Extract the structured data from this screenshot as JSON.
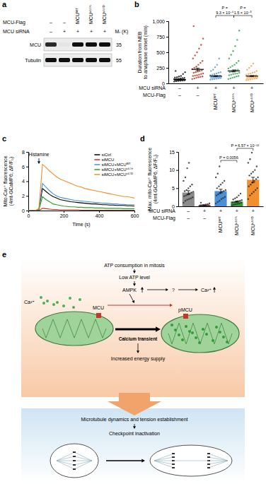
{
  "panel_labels": [
    "a",
    "b",
    "c",
    "d",
    "e"
  ],
  "panel_a": {
    "row_labels": [
      {
        "label": "MCU-Flag",
        "values": [
          "–",
          "–",
          "MCUᵂᵀ",
          "MCUˢ⁵⁷ᴬ",
          "MCUˢ⁵⁷ᴰ"
        ]
      },
      {
        "label": "MCU siRNA",
        "values": [
          "–",
          "+",
          "+",
          "+",
          "+"
        ]
      }
    ],
    "mr_label": "Mᵣ (K)",
    "blots": [
      {
        "label": "MCU",
        "mr": 35,
        "intensity": [
          0.9,
          0.1,
          1,
          1,
          1
        ]
      },
      {
        "label": "Tubulin",
        "mr": 55,
        "intensity": [
          1,
          1,
          1,
          1,
          1
        ]
      }
    ]
  },
  "chart_data": [
    {
      "type": "strip",
      "y_label": [
        "Duration from NEB",
        "to anaphase onset (min)"
      ],
      "x_label": "MCU-Flag",
      "categories": [
        "–",
        "–",
        "MCUᵂᵀ",
        "MCUˢ⁵⁷ᴬ",
        "MCUˢ⁵⁷ᴰ"
      ],
      "row_labels": [
        {
          "label": "MCU siRNA",
          "values": [
            "–",
            "+",
            "+",
            "+",
            "+"
          ]
        }
      ],
      "values": [
        62,
        225,
        118,
        200,
        118
      ],
      "errors": [
        4,
        20,
        8,
        16,
        8
      ],
      "points": [
        [
          30,
          35,
          40,
          42,
          45,
          48,
          50,
          50,
          52,
          55,
          55,
          58,
          60,
          60,
          62,
          65,
          68,
          70,
          72,
          75,
          80,
          85,
          90,
          95,
          100,
          110,
          120,
          150,
          180,
          200
        ],
        [
          70,
          80,
          90,
          100,
          105,
          110,
          120,
          125,
          130,
          140,
          150,
          160,
          170,
          180,
          190,
          200,
          210,
          230,
          250,
          270,
          300,
          330,
          360,
          400,
          450,
          500,
          560,
          620,
          720,
          920
        ],
        [
          60,
          65,
          70,
          75,
          80,
          85,
          90,
          90,
          95,
          100,
          100,
          105,
          110,
          110,
          115,
          120,
          125,
          130,
          140,
          150,
          160,
          170,
          180,
          200,
          220,
          260,
          300,
          400
        ],
        [
          70,
          80,
          90,
          100,
          110,
          120,
          130,
          140,
          150,
          155,
          160,
          170,
          180,
          190,
          200,
          210,
          220,
          240,
          260,
          280,
          300,
          330,
          360,
          400,
          460,
          520,
          600,
          700,
          850
        ],
        [
          55,
          60,
          65,
          70,
          75,
          80,
          85,
          90,
          95,
          100,
          100,
          105,
          110,
          115,
          120,
          125,
          130,
          140,
          150,
          160,
          170,
          180,
          200,
          220,
          250,
          280,
          320
        ]
      ],
      "colors": [
        "#1a1a1a",
        "#c0392b",
        "#5b9bd5",
        "#3aa655",
        "#f5a04a"
      ],
      "ylim": [
        0,
        1000
      ],
      "yticks": [
        0,
        250,
        500,
        750,
        {
          "value": 1000,
          "label": "1,000"
        }
      ],
      "annotations": [
        {
          "lines": [
            "P =",
            "9.3 × 10⁻⁶"
          ],
          "from": 2,
          "to": 3
        },
        {
          "lines": [
            "P =",
            "1.5 × 10⁻⁵"
          ],
          "from": 3,
          "to": 4
        }
      ]
    },
    {
      "type": "line",
      "x_label": "Time (s)",
      "y_label": [
        "Mito-Ca²⁺ fluorescence",
        "(4mt-GCaMP6, ΔF/F₀)"
      ],
      "x": [
        0,
        20,
        40,
        60,
        80,
        100,
        120,
        140,
        160,
        180,
        200,
        220,
        240,
        260,
        280,
        300,
        320,
        340,
        360,
        380,
        400,
        420,
        440,
        460,
        480,
        500,
        520,
        540,
        560,
        580,
        600
      ],
      "series": [
        {
          "name": "siCtrl",
          "color": "#000000",
          "values": [
            0,
            0,
            0,
            0.2,
            3.0,
            2.6,
            2.2,
            1.9,
            1.7,
            1.5,
            1.4,
            1.3,
            1.2,
            1.15,
            1.1,
            1.05,
            1.0,
            0.95,
            0.9,
            0.9,
            0.85,
            0.8,
            0.8,
            0.75,
            0.75,
            0.7,
            0.7,
            0.7,
            0.65,
            0.65,
            0.6
          ]
        },
        {
          "name": "siMCU",
          "color": "#d62728",
          "values": [
            0,
            0,
            0,
            0,
            0.3,
            0.25,
            0.2,
            0.15,
            0.15,
            0.1,
            0.1,
            0.1,
            0.1,
            0.1,
            0.1,
            0.05,
            0.05,
            0.05,
            0.05,
            0.05,
            0.05,
            0.05,
            0.05,
            0.05,
            0.05,
            0.05,
            0.05,
            0.05,
            0.05,
            0.05,
            0.05
          ]
        },
        {
          "name": "siMCU+MCUᵂᵀ",
          "color": "#4a90d9",
          "values": [
            0,
            0,
            0,
            0.2,
            3.7,
            3.2,
            2.7,
            2.3,
            2.0,
            1.8,
            1.7,
            1.6,
            1.5,
            1.4,
            1.35,
            1.3,
            1.25,
            1.2,
            1.15,
            1.1,
            1.05,
            1.0,
            1.0,
            0.95,
            0.9,
            0.9,
            0.85,
            0.85,
            0.8,
            0.8,
            0.8
          ]
        },
        {
          "name": "siMCU+MCUˢ⁵⁷ᴬ",
          "color": "#2ca02c",
          "values": [
            0,
            0,
            0,
            0.1,
            1.9,
            1.5,
            1.2,
            0.9,
            0.8,
            0.7,
            0.6,
            0.55,
            0.5,
            0.5,
            0.45,
            0.45,
            0.4,
            0.4,
            0.4,
            0.35,
            0.35,
            0.35,
            0.3,
            0.3,
            0.3,
            0.3,
            0.3,
            0.25,
            0.25,
            0.25,
            0.25
          ]
        },
        {
          "name": "siMCU+MCUˢ⁵⁷ᴰ",
          "color": "#f28e2b",
          "values": [
            0,
            0,
            0,
            0.3,
            6.3,
            5.9,
            5.4,
            5.0,
            4.6,
            4.3,
            4.1,
            3.9,
            3.7,
            3.5,
            3.3,
            3.2,
            3.0,
            2.9,
            2.8,
            2.7,
            2.6,
            2.5,
            2.4,
            2.3,
            2.2,
            2.1,
            2.0,
            1.9,
            1.9,
            1.8,
            1.7
          ]
        }
      ],
      "xlim": [
        0,
        600
      ],
      "xticks": [
        0,
        200,
        400,
        600
      ],
      "ylim": [
        0,
        8
      ],
      "yticks": [
        0,
        2,
        4,
        6,
        8
      ],
      "legend": "top-right",
      "annotations": [
        {
          "text": "Histamine",
          "x": 60
        }
      ]
    },
    {
      "type": "bar",
      "y_label": [
        "Max. mito-Ca²⁺ fluorescence",
        "(4mt-GCaMP6, ΔF/F₀)"
      ],
      "x_label": "MCU-Flag",
      "categories": [
        "–",
        "–",
        "MCUᵂᵀ",
        "MCUˢ⁵⁷ᴬ",
        "MCUˢ⁵⁷ᴰ"
      ],
      "row_labels": [
        {
          "label": "MCU siRNA",
          "values": [
            "–",
            "+",
            "+",
            "+",
            "+"
          ]
        }
      ],
      "values": [
        3.8,
        0.3,
        4.2,
        1.3,
        7.3
      ],
      "errors": [
        0.5,
        0.05,
        0.5,
        0.15,
        0.7
      ],
      "points": [
        [
          1.0,
          1.5,
          1.8,
          2.0,
          2.2,
          2.5,
          2.8,
          3.0,
          3.2,
          3.5,
          3.8,
          4.0,
          4.2,
          4.5,
          5.0,
          5.5,
          6.0,
          7.0,
          8.0,
          10.5,
          12.0
        ],
        [
          0.1,
          0.15,
          0.2,
          0.2,
          0.25,
          0.3,
          0.3,
          0.35,
          0.4,
          0.5,
          0.6,
          0.8,
          1.0
        ],
        [
          0.8,
          1.2,
          1.5,
          2.0,
          2.3,
          2.6,
          3.0,
          3.3,
          3.6,
          4.0,
          4.2,
          4.5,
          5.0,
          5.5,
          6.0,
          6.5,
          7.0,
          8.0,
          9.0,
          11.0
        ],
        [
          0.3,
          0.5,
          0.6,
          0.7,
          0.8,
          1.0,
          1.1,
          1.2,
          1.3,
          1.4,
          1.5,
          1.7,
          1.9,
          2.2,
          2.5,
          3.0,
          3.5
        ],
        [
          2.0,
          3.0,
          3.5,
          4.0,
          4.5,
          5.0,
          5.5,
          6.0,
          6.5,
          7.0,
          7.5,
          8.0,
          8.5,
          9.0,
          9.5,
          10.0,
          11.0,
          12.0,
          13.0,
          14.8
        ]
      ],
      "colors": [
        "#8c8c8c",
        "#d62728",
        "#4a90d9",
        "#2ca02c",
        "#f28e2b"
      ],
      "ylim": [
        0,
        15
      ],
      "yticks": [
        0,
        5,
        10,
        15
      ],
      "annotations": [
        {
          "lines": [
            "P = 0.0056"
          ],
          "from": 2,
          "to": 3
        },
        {
          "lines": [
            "P = 6.57 × 10⁻¹²"
          ],
          "from": 3,
          "to": 4
        }
      ]
    }
  ],
  "panel_e": {
    "atp": "ATP consumption in mitosis",
    "low_atp": "Low ATP level",
    "ampk": "AMPK",
    "unknown": "?",
    "ca_result": "Ca²⁺",
    "ca_cytosol": "Ca²⁺",
    "mcu": "MCU",
    "pmcu": "pMCU",
    "transient": "Calcium transient",
    "energy": "Increased energy supply",
    "microtubule": "Microtubule dynamics and tension establishment",
    "checkpoint": "Checkpoint inactivation"
  }
}
